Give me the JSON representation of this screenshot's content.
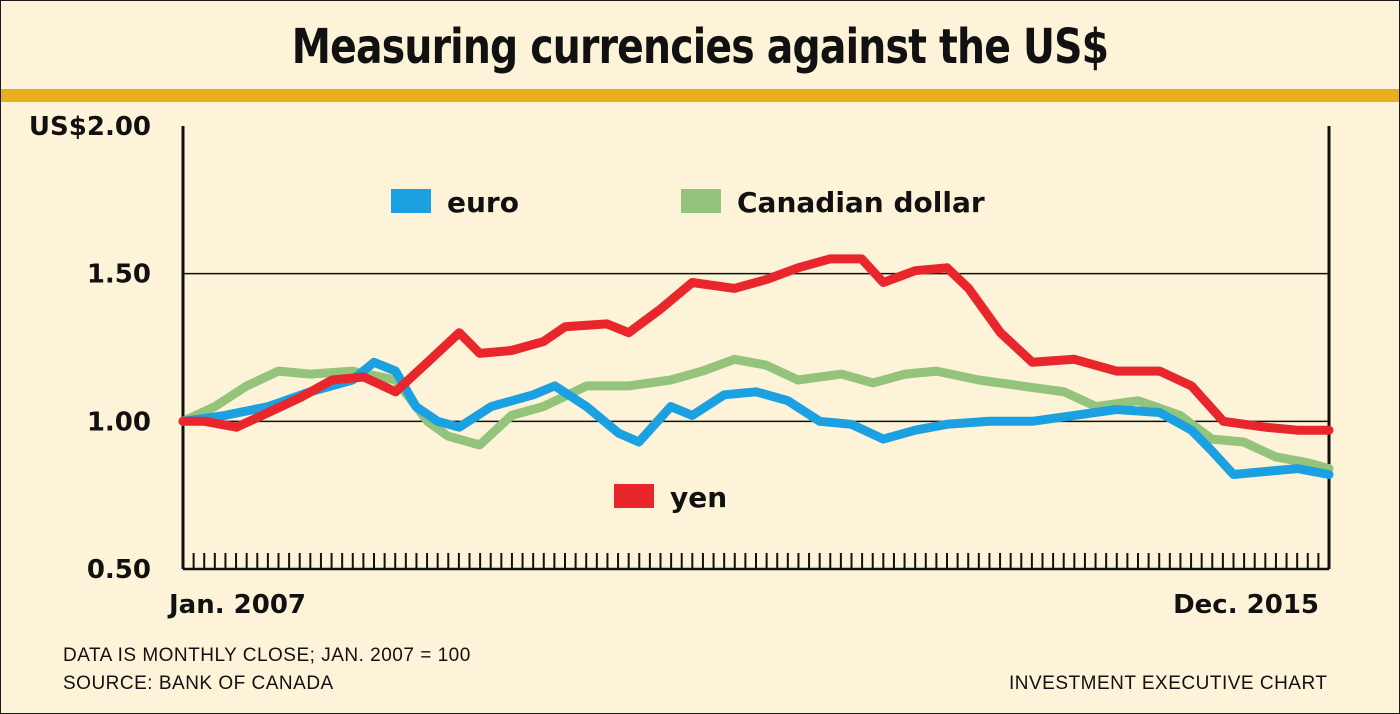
{
  "header": {
    "title": "Measuring currencies against the US$"
  },
  "footer": {
    "note": "DATA IS MONTHLY CLOSE; JAN. 2007 = 100",
    "source": "SOURCE: BANK OF CANADA",
    "credit": "INVESTMENT EXECUTIVE CHART"
  },
  "colors": {
    "background": "#fdf3d8",
    "rule": "#e9ae1f",
    "euro": "#1ba1e2",
    "canadian_dollar": "#94c47c",
    "yen": "#e8262c"
  },
  "chart_data": {
    "type": "line",
    "title": "Measuring currencies against the US$",
    "ylim": [
      0.5,
      2.0
    ],
    "yticks": [
      "US$2.00",
      "1.50",
      "1.00",
      "0.50"
    ],
    "ytick_values": [
      2.0,
      1.5,
      1.0,
      0.5
    ],
    "x_start_label": "Jan. 2007",
    "x_end_label": "Dec. 2015",
    "grid": "horizontal at 1.00 and 1.50",
    "legend": [
      {
        "name": "euro",
        "color": "#1ba1e2"
      },
      {
        "name": "Canadian dollar",
        "color": "#94c47c"
      },
      {
        "name": "yen",
        "color": "#e8262c"
      }
    ],
    "series": [
      {
        "name": "euro",
        "color": "#1ba1e2",
        "points": [
          [
            2007.0,
            1.0
          ],
          [
            2007.33,
            1.02
          ],
          [
            2007.67,
            1.05
          ],
          [
            2008.0,
            1.1
          ],
          [
            2008.33,
            1.14
          ],
          [
            2008.5,
            1.2
          ],
          [
            2008.67,
            1.17
          ],
          [
            2008.83,
            1.05
          ],
          [
            2009.0,
            1.0
          ],
          [
            2009.17,
            0.98
          ],
          [
            2009.42,
            1.05
          ],
          [
            2009.75,
            1.09
          ],
          [
            2009.92,
            1.12
          ],
          [
            2010.17,
            1.05
          ],
          [
            2010.42,
            0.96
          ],
          [
            2010.58,
            0.93
          ],
          [
            2010.83,
            1.05
          ],
          [
            2011.0,
            1.02
          ],
          [
            2011.25,
            1.09
          ],
          [
            2011.5,
            1.1
          ],
          [
            2011.75,
            1.07
          ],
          [
            2012.0,
            1.0
          ],
          [
            2012.25,
            0.99
          ],
          [
            2012.5,
            0.94
          ],
          [
            2012.75,
            0.97
          ],
          [
            2013.0,
            0.99
          ],
          [
            2013.33,
            1.0
          ],
          [
            2013.67,
            1.0
          ],
          [
            2014.0,
            1.02
          ],
          [
            2014.33,
            1.04
          ],
          [
            2014.67,
            1.03
          ],
          [
            2014.92,
            0.97
          ],
          [
            2015.08,
            0.9
          ],
          [
            2015.25,
            0.82
          ],
          [
            2015.5,
            0.83
          ],
          [
            2015.75,
            0.84
          ],
          [
            2016.0,
            0.82
          ]
        ]
      },
      {
        "name": "Canadian dollar",
        "color": "#94c47c",
        "points": [
          [
            2007.0,
            1.0
          ],
          [
            2007.25,
            1.05
          ],
          [
            2007.5,
            1.12
          ],
          [
            2007.75,
            1.17
          ],
          [
            2008.0,
            1.16
          ],
          [
            2008.33,
            1.17
          ],
          [
            2008.67,
            1.14
          ],
          [
            2008.92,
            1.0
          ],
          [
            2009.08,
            0.95
          ],
          [
            2009.33,
            0.92
          ],
          [
            2009.58,
            1.02
          ],
          [
            2009.83,
            1.05
          ],
          [
            2010.17,
            1.12
          ],
          [
            2010.5,
            1.12
          ],
          [
            2010.83,
            1.14
          ],
          [
            2011.08,
            1.17
          ],
          [
            2011.33,
            1.21
          ],
          [
            2011.58,
            1.19
          ],
          [
            2011.83,
            1.14
          ],
          [
            2012.17,
            1.16
          ],
          [
            2012.42,
            1.13
          ],
          [
            2012.67,
            1.16
          ],
          [
            2012.92,
            1.17
          ],
          [
            2013.25,
            1.14
          ],
          [
            2013.58,
            1.12
          ],
          [
            2013.92,
            1.1
          ],
          [
            2014.17,
            1.05
          ],
          [
            2014.5,
            1.07
          ],
          [
            2014.83,
            1.02
          ],
          [
            2015.08,
            0.94
          ],
          [
            2015.33,
            0.93
          ],
          [
            2015.58,
            0.88
          ],
          [
            2015.83,
            0.86
          ],
          [
            2016.0,
            0.84
          ]
        ]
      },
      {
        "name": "yen",
        "color": "#e8262c",
        "points": [
          [
            2007.0,
            1.0
          ],
          [
            2007.17,
            1.0
          ],
          [
            2007.42,
            0.98
          ],
          [
            2007.67,
            1.03
          ],
          [
            2007.92,
            1.08
          ],
          [
            2008.17,
            1.14
          ],
          [
            2008.42,
            1.15
          ],
          [
            2008.67,
            1.1
          ],
          [
            2008.92,
            1.2
          ],
          [
            2009.17,
            1.3
          ],
          [
            2009.33,
            1.23
          ],
          [
            2009.58,
            1.24
          ],
          [
            2009.83,
            1.27
          ],
          [
            2010.0,
            1.32
          ],
          [
            2010.33,
            1.33
          ],
          [
            2010.5,
            1.3
          ],
          [
            2010.75,
            1.38
          ],
          [
            2011.0,
            1.47
          ],
          [
            2011.33,
            1.45
          ],
          [
            2011.58,
            1.48
          ],
          [
            2011.83,
            1.52
          ],
          [
            2012.08,
            1.55
          ],
          [
            2012.33,
            1.55
          ],
          [
            2012.5,
            1.47
          ],
          [
            2012.75,
            1.51
          ],
          [
            2013.0,
            1.52
          ],
          [
            2013.17,
            1.45
          ],
          [
            2013.42,
            1.3
          ],
          [
            2013.67,
            1.2
          ],
          [
            2014.0,
            1.21
          ],
          [
            2014.33,
            1.17
          ],
          [
            2014.67,
            1.17
          ],
          [
            2014.92,
            1.12
          ],
          [
            2015.17,
            1.0
          ],
          [
            2015.5,
            0.98
          ],
          [
            2015.75,
            0.97
          ],
          [
            2016.0,
            0.97
          ]
        ]
      }
    ]
  }
}
